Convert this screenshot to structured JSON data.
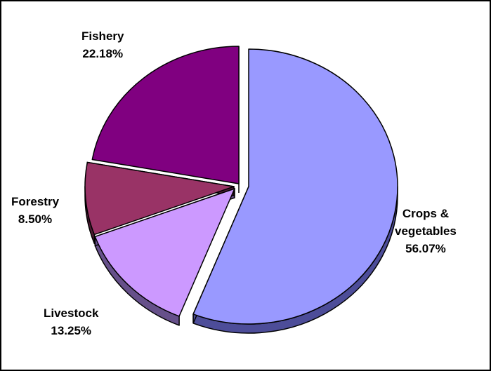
{
  "chart_data": {
    "type": "pie",
    "style": "3d-exploded",
    "border": true,
    "slices": [
      {
        "name": "Crops & vegetables",
        "name_lines": [
          "Crops &",
          "vegetables"
        ],
        "value": 56.07,
        "label": "56.07%",
        "color": "#9999ff",
        "side_color": "#4d4d99"
      },
      {
        "name": "Livestock",
        "name_lines": [
          "Livestock"
        ],
        "value": 13.25,
        "label": "13.25%",
        "color": "#cc99ff",
        "side_color": "#66508a"
      },
      {
        "name": "Forestry",
        "name_lines": [
          "Forestry"
        ],
        "value": 8.5,
        "label": "8.50%",
        "color": "#993366",
        "side_color": "#4d1a33"
      },
      {
        "name": "Fishery",
        "name_lines": [
          "Fishery"
        ],
        "value": 22.18,
        "label": "22.18%",
        "color": "#800080",
        "side_color": "#400040"
      }
    ]
  }
}
